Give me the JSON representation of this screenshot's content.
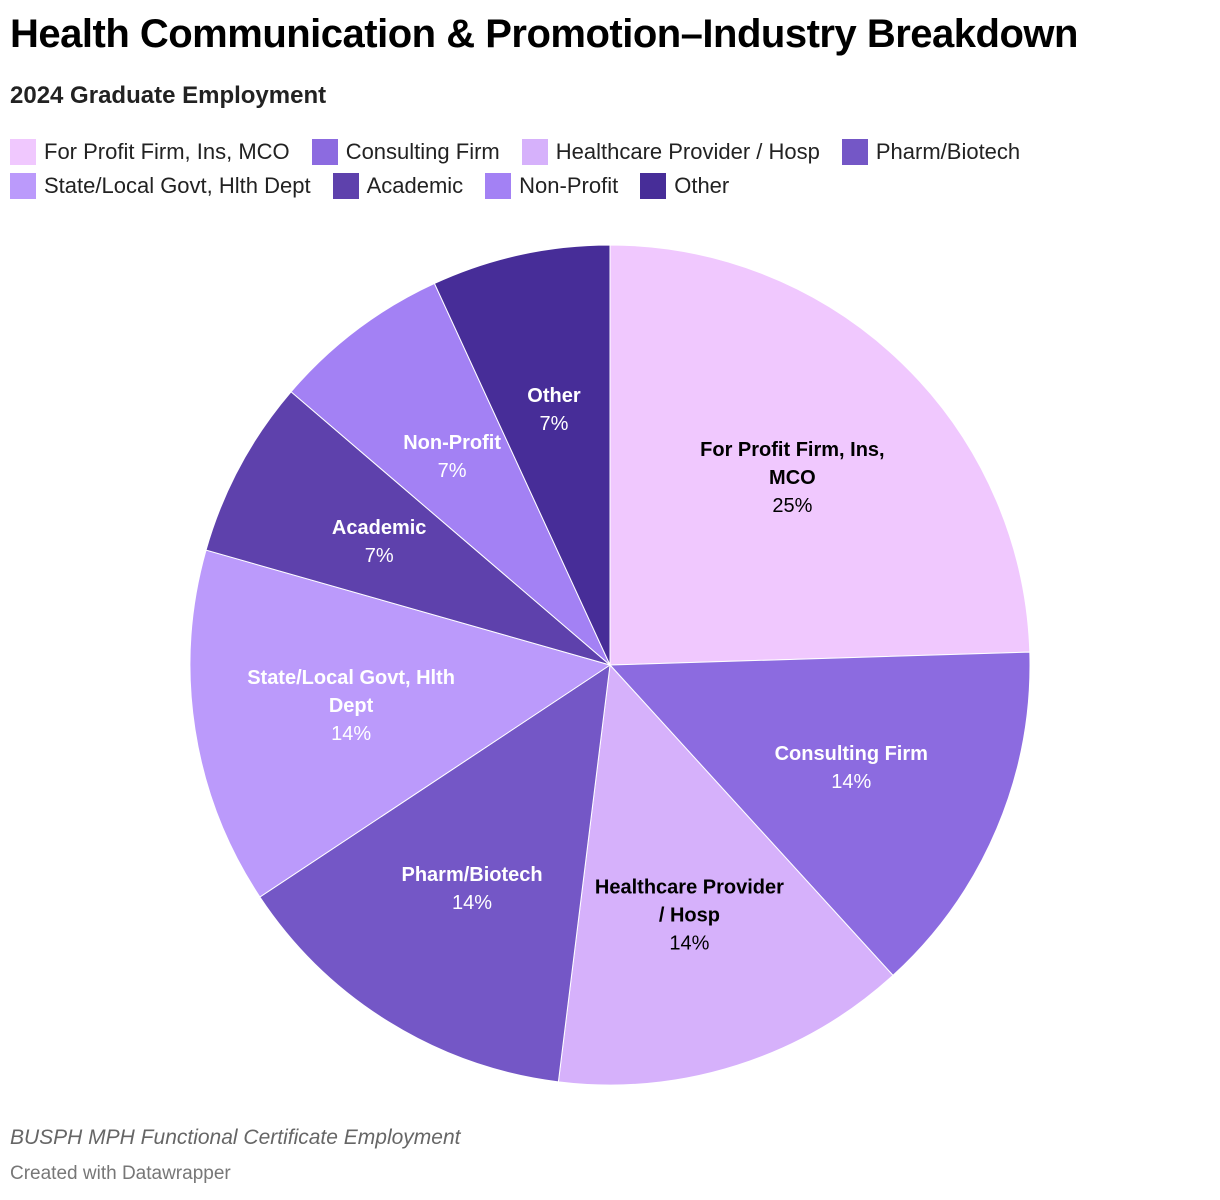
{
  "header": {
    "title": "Health Communication & Promotion–Industry Breakdown",
    "subtitle": "2024 Graduate Employment"
  },
  "footer": {
    "source": "BUSPH MPH Functional Certificate Employment",
    "credit": "Created with Datawrapper"
  },
  "chart_data": {
    "type": "pie",
    "title": "Health Communication & Promotion–Industry Breakdown",
    "legend_position": "top",
    "categories": [
      "For Profit Firm, Ins, MCO",
      "Consulting Firm",
      "Healthcare Provider / Hosp",
      "Pharm/Biotech",
      "State/Local Govt, Hlth Dept",
      "Academic",
      "Non-Profit",
      "Other"
    ],
    "label_lines": [
      [
        "For Profit Firm, Ins,",
        "MCO"
      ],
      [
        "Consulting Firm"
      ],
      [
        "Healthcare Provider",
        "/ Hosp"
      ],
      [
        "Pharm/Biotech"
      ],
      [
        "State/Local Govt, Hlth",
        "Dept"
      ],
      [
        "Academic"
      ],
      [
        "Non-Profit"
      ],
      [
        "Other"
      ]
    ],
    "values": [
      25,
      14,
      14,
      14,
      14,
      7,
      7,
      7
    ],
    "value_labels": [
      "25%",
      "14%",
      "14%",
      "14%",
      "14%",
      "7%",
      "7%",
      "7%"
    ],
    "colors": [
      "#f0c8fe",
      "#8c6be0",
      "#d6b1fb",
      "#7457c6",
      "#bb9afb",
      "#5e41ac",
      "#a381f4",
      "#472d98"
    ],
    "label_colors": [
      "#000000",
      "#ffffff",
      "#000000",
      "#ffffff",
      "#ffffff",
      "#ffffff",
      "#ffffff",
      "#ffffff"
    ]
  }
}
